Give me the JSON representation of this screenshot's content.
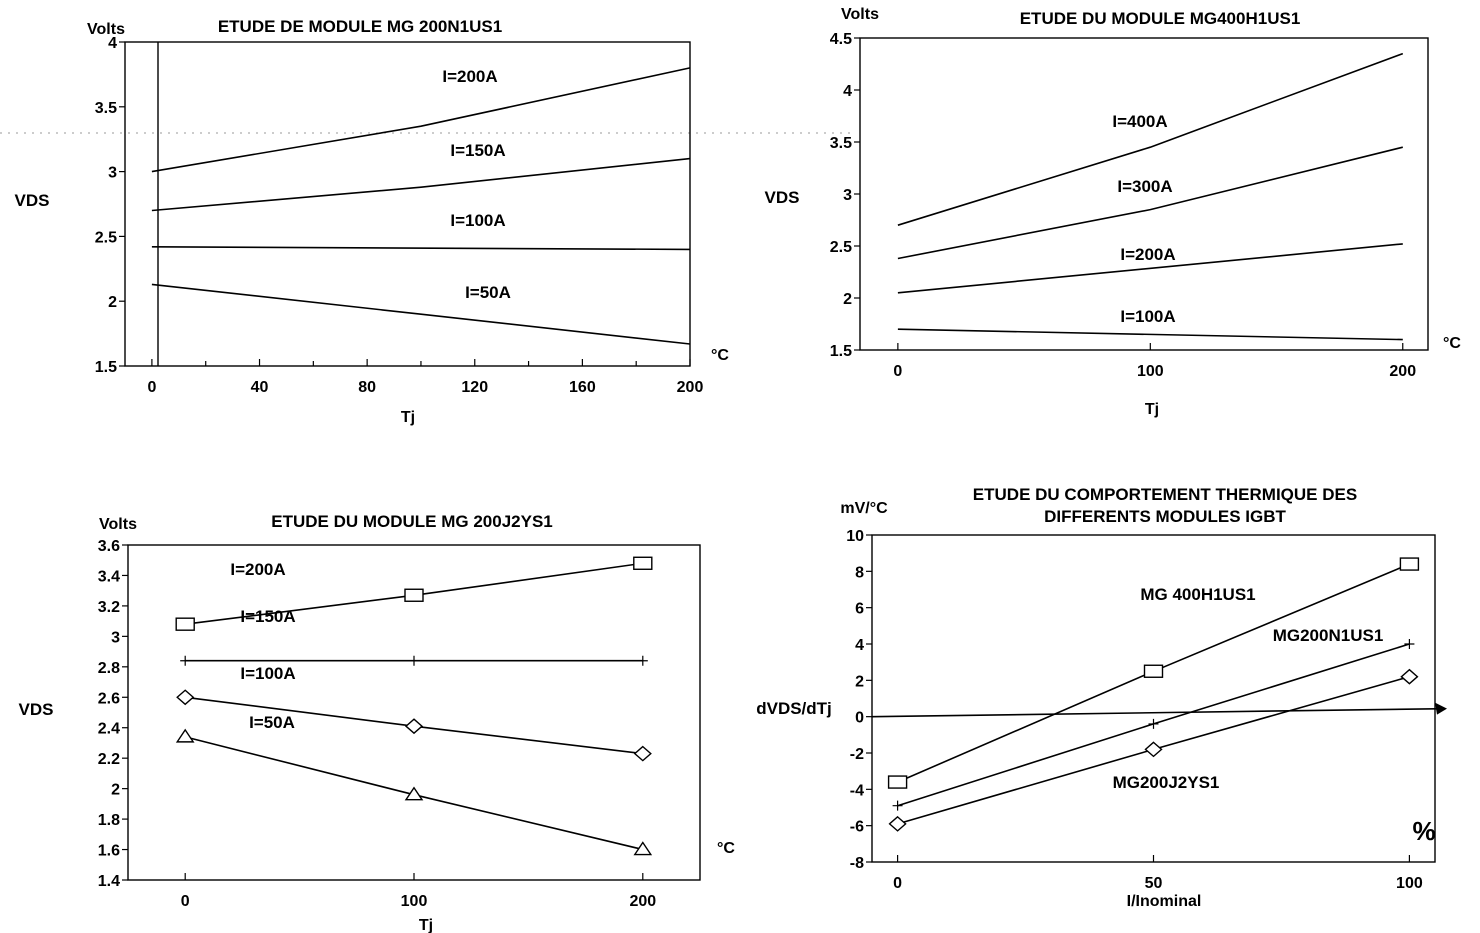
{
  "chart_data": [
    {
      "type": "line",
      "title": "ETUDE DE MODULE MG 200N1US1",
      "ylabel": "VDS",
      "yunit": "Volts",
      "xlabel": "Tj",
      "xunit": "°C",
      "xlim": [
        -10,
        200
      ],
      "ylim": [
        1.5,
        4
      ],
      "xticks": [
        0,
        40,
        80,
        120,
        160,
        200
      ],
      "xtick_labels": [
        "0",
        "40",
        "80",
        "120",
        "160",
        "200"
      ],
      "yticks": [
        1.5,
        2,
        2.5,
        3,
        3.5,
        4
      ],
      "ytick_labels": [
        "1.5",
        "2",
        "2.5",
        "3",
        "3.5",
        "4"
      ],
      "grid": false,
      "series": [
        {
          "name": "I=200A",
          "x": [
            0,
            100,
            200
          ],
          "y": [
            3.0,
            3.35,
            3.8
          ]
        },
        {
          "name": "I=150A",
          "x": [
            0,
            100,
            200
          ],
          "y": [
            2.7,
            2.88,
            3.1
          ]
        },
        {
          "name": "I=100A",
          "x": [
            0,
            200
          ],
          "y": [
            2.42,
            2.4
          ]
        },
        {
          "name": "I=50A",
          "x": [
            0,
            100,
            200
          ],
          "y": [
            2.13,
            1.9,
            1.67
          ]
        }
      ]
    },
    {
      "type": "line",
      "title": "ETUDE DU MODULE MG400H1US1",
      "ylabel": "VDS",
      "yunit": "Volts",
      "xlabel": "Tj",
      "xunit": "°C",
      "xlim": [
        -15,
        210
      ],
      "ylim": [
        1.5,
        4.5
      ],
      "xticks": [
        0,
        100,
        200
      ],
      "xtick_labels": [
        "0",
        "100",
        "200"
      ],
      "yticks": [
        1.5,
        2,
        2.5,
        3,
        3.5,
        4,
        4.5
      ],
      "ytick_labels": [
        "1.5",
        "2",
        "2.5",
        "3",
        "3.5",
        "4",
        "4.5"
      ],
      "grid": false,
      "series": [
        {
          "name": "I=400A",
          "x": [
            0,
            100,
            200
          ],
          "y": [
            2.7,
            3.45,
            4.35
          ]
        },
        {
          "name": "I=300A",
          "x": [
            0,
            100,
            200
          ],
          "y": [
            2.38,
            2.85,
            3.45
          ]
        },
        {
          "name": "I=200A",
          "x": [
            0,
            200
          ],
          "y": [
            2.05,
            2.52
          ]
        },
        {
          "name": "I=100A",
          "x": [
            0,
            200
          ],
          "y": [
            1.7,
            1.6
          ]
        }
      ]
    },
    {
      "type": "line",
      "title": "ETUDE DU MODULE MG 200J2YS1",
      "ylabel": "VDS",
      "yunit": "Volts",
      "xlabel": "Tj",
      "xunit": "°C",
      "xlim": [
        -25,
        225
      ],
      "ylim": [
        1.4,
        3.6
      ],
      "xticks": [
        0,
        100,
        200
      ],
      "xtick_labels": [
        "0",
        "100",
        "200"
      ],
      "yticks": [
        1.4,
        1.6,
        1.8,
        2,
        2.2,
        2.4,
        2.6,
        2.8,
        3,
        3.2,
        3.4,
        3.6
      ],
      "ytick_labels": [
        "1.4",
        "1.6",
        "1.8",
        "2",
        "2.2",
        "2.4",
        "2.6",
        "2.8",
        "3",
        "3.2",
        "3.4",
        "3.6"
      ],
      "grid": false,
      "series": [
        {
          "name": "I=200A",
          "marker": "square",
          "x": [
            0,
            100,
            200
          ],
          "y": [
            3.08,
            3.27,
            3.48
          ]
        },
        {
          "name": "I=150A",
          "marker": "plus",
          "x": [
            0,
            100,
            200
          ],
          "y": [
            2.84,
            2.84,
            2.84
          ]
        },
        {
          "name": "I=100A",
          "marker": "diamond",
          "x": [
            0,
            100,
            200
          ],
          "y": [
            2.6,
            2.41,
            2.23
          ]
        },
        {
          "name": "I=50A",
          "marker": "triangle",
          "x": [
            0,
            100,
            200
          ],
          "y": [
            2.34,
            1.96,
            1.6
          ]
        }
      ]
    },
    {
      "type": "line",
      "title": "ETUDE DU COMPORTEMENT THERMIQUE DES",
      "subtitle": "DIFFERENTS MODULES IGBT",
      "ylabel": "dVDS/dTj",
      "yunit": "mV/°C",
      "xlabel": "I/Inominal",
      "xunit": "%",
      "xlim": [
        -5,
        105
      ],
      "ylim": [
        -8,
        10
      ],
      "xticks": [
        0,
        50,
        100
      ],
      "xtick_labels": [
        "0",
        "50",
        "100"
      ],
      "yticks": [
        -8,
        -6,
        -4,
        -2,
        0,
        2,
        4,
        6,
        8,
        10
      ],
      "ytick_labels": [
        "-8",
        "-6",
        "-4",
        "-2",
        "0",
        "2",
        "4",
        "6",
        "8",
        "10"
      ],
      "grid": false,
      "series": [
        {
          "name": "MG 400H1US1",
          "marker": "square",
          "x": [
            0,
            50,
            100
          ],
          "y": [
            -3.6,
            2.5,
            8.4
          ]
        },
        {
          "name": "MG200N1US1",
          "marker": "plus",
          "x": [
            0,
            50,
            100
          ],
          "y": [
            -4.9,
            -0.4,
            4.0
          ]
        },
        {
          "name": "MG200J2YS1",
          "marker": "diamond",
          "x": [
            0,
            50,
            100
          ],
          "y": [
            -5.9,
            -1.8,
            2.2
          ]
        }
      ]
    }
  ]
}
